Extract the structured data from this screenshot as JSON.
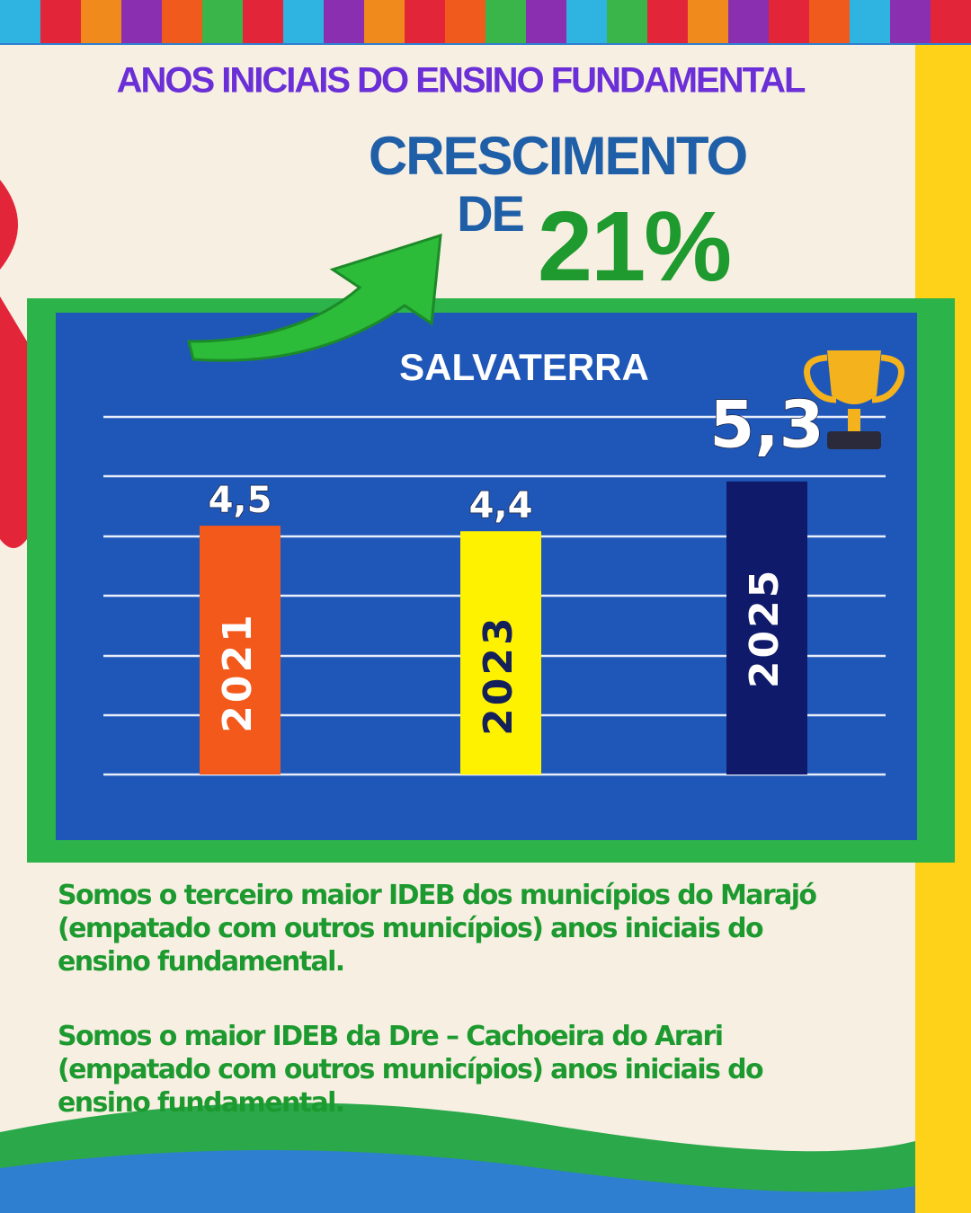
{
  "header": {
    "title": "ANOS INICIAIS DO ENSINO FUNDAMENTAL",
    "growth_line1": "CRESCIMENTO",
    "growth_line2": "DE",
    "growth_value": "21%"
  },
  "chart_data": {
    "type": "bar",
    "title": "SALVATERRA",
    "categories": [
      "2021",
      "2023",
      "2025"
    ],
    "values": [
      4.5,
      4.4,
      5.3
    ],
    "value_labels": [
      "4,5",
      "4,4",
      "5,3"
    ],
    "colors": [
      "#f4591c",
      "#fff200",
      "#101a6b"
    ],
    "category_colors": [
      "#ffffff",
      "#14205a",
      "#ffffff"
    ],
    "ylim": [
      0,
      6.5
    ]
  },
  "paragraphs": [
    [
      "Somos o terceiro maior IDEB dos municípios do Marajó",
      "(empatado com outros municípios) anos iniciais do",
      "ensino fundamental."
    ],
    [
      "Somos o maior IDEB da Dre – Cachoeira do Arari",
      "(empatado com outros municípios) anos iniciais do",
      "ensino fundamental."
    ]
  ]
}
